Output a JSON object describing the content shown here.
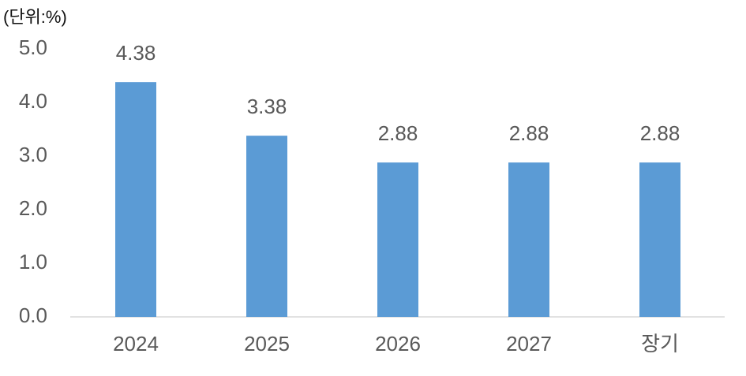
{
  "chart_data": {
    "type": "bar",
    "unit_label": "(단위:%)",
    "categories": [
      "2024",
      "2025",
      "2026",
      "2027",
      "장기"
    ],
    "values": [
      4.38,
      3.38,
      2.88,
      2.88,
      2.88
    ],
    "color": "#5b9bd5",
    "ylim": [
      0,
      5
    ],
    "yticks": [
      {
        "value": 0,
        "label": "0.0"
      },
      {
        "value": 1,
        "label": "1.0"
      },
      {
        "value": 2,
        "label": "2.0"
      },
      {
        "value": 3,
        "label": "3.0"
      },
      {
        "value": 4,
        "label": "4.0"
      },
      {
        "value": 5,
        "label": "5.0"
      }
    ],
    "grid": false
  }
}
